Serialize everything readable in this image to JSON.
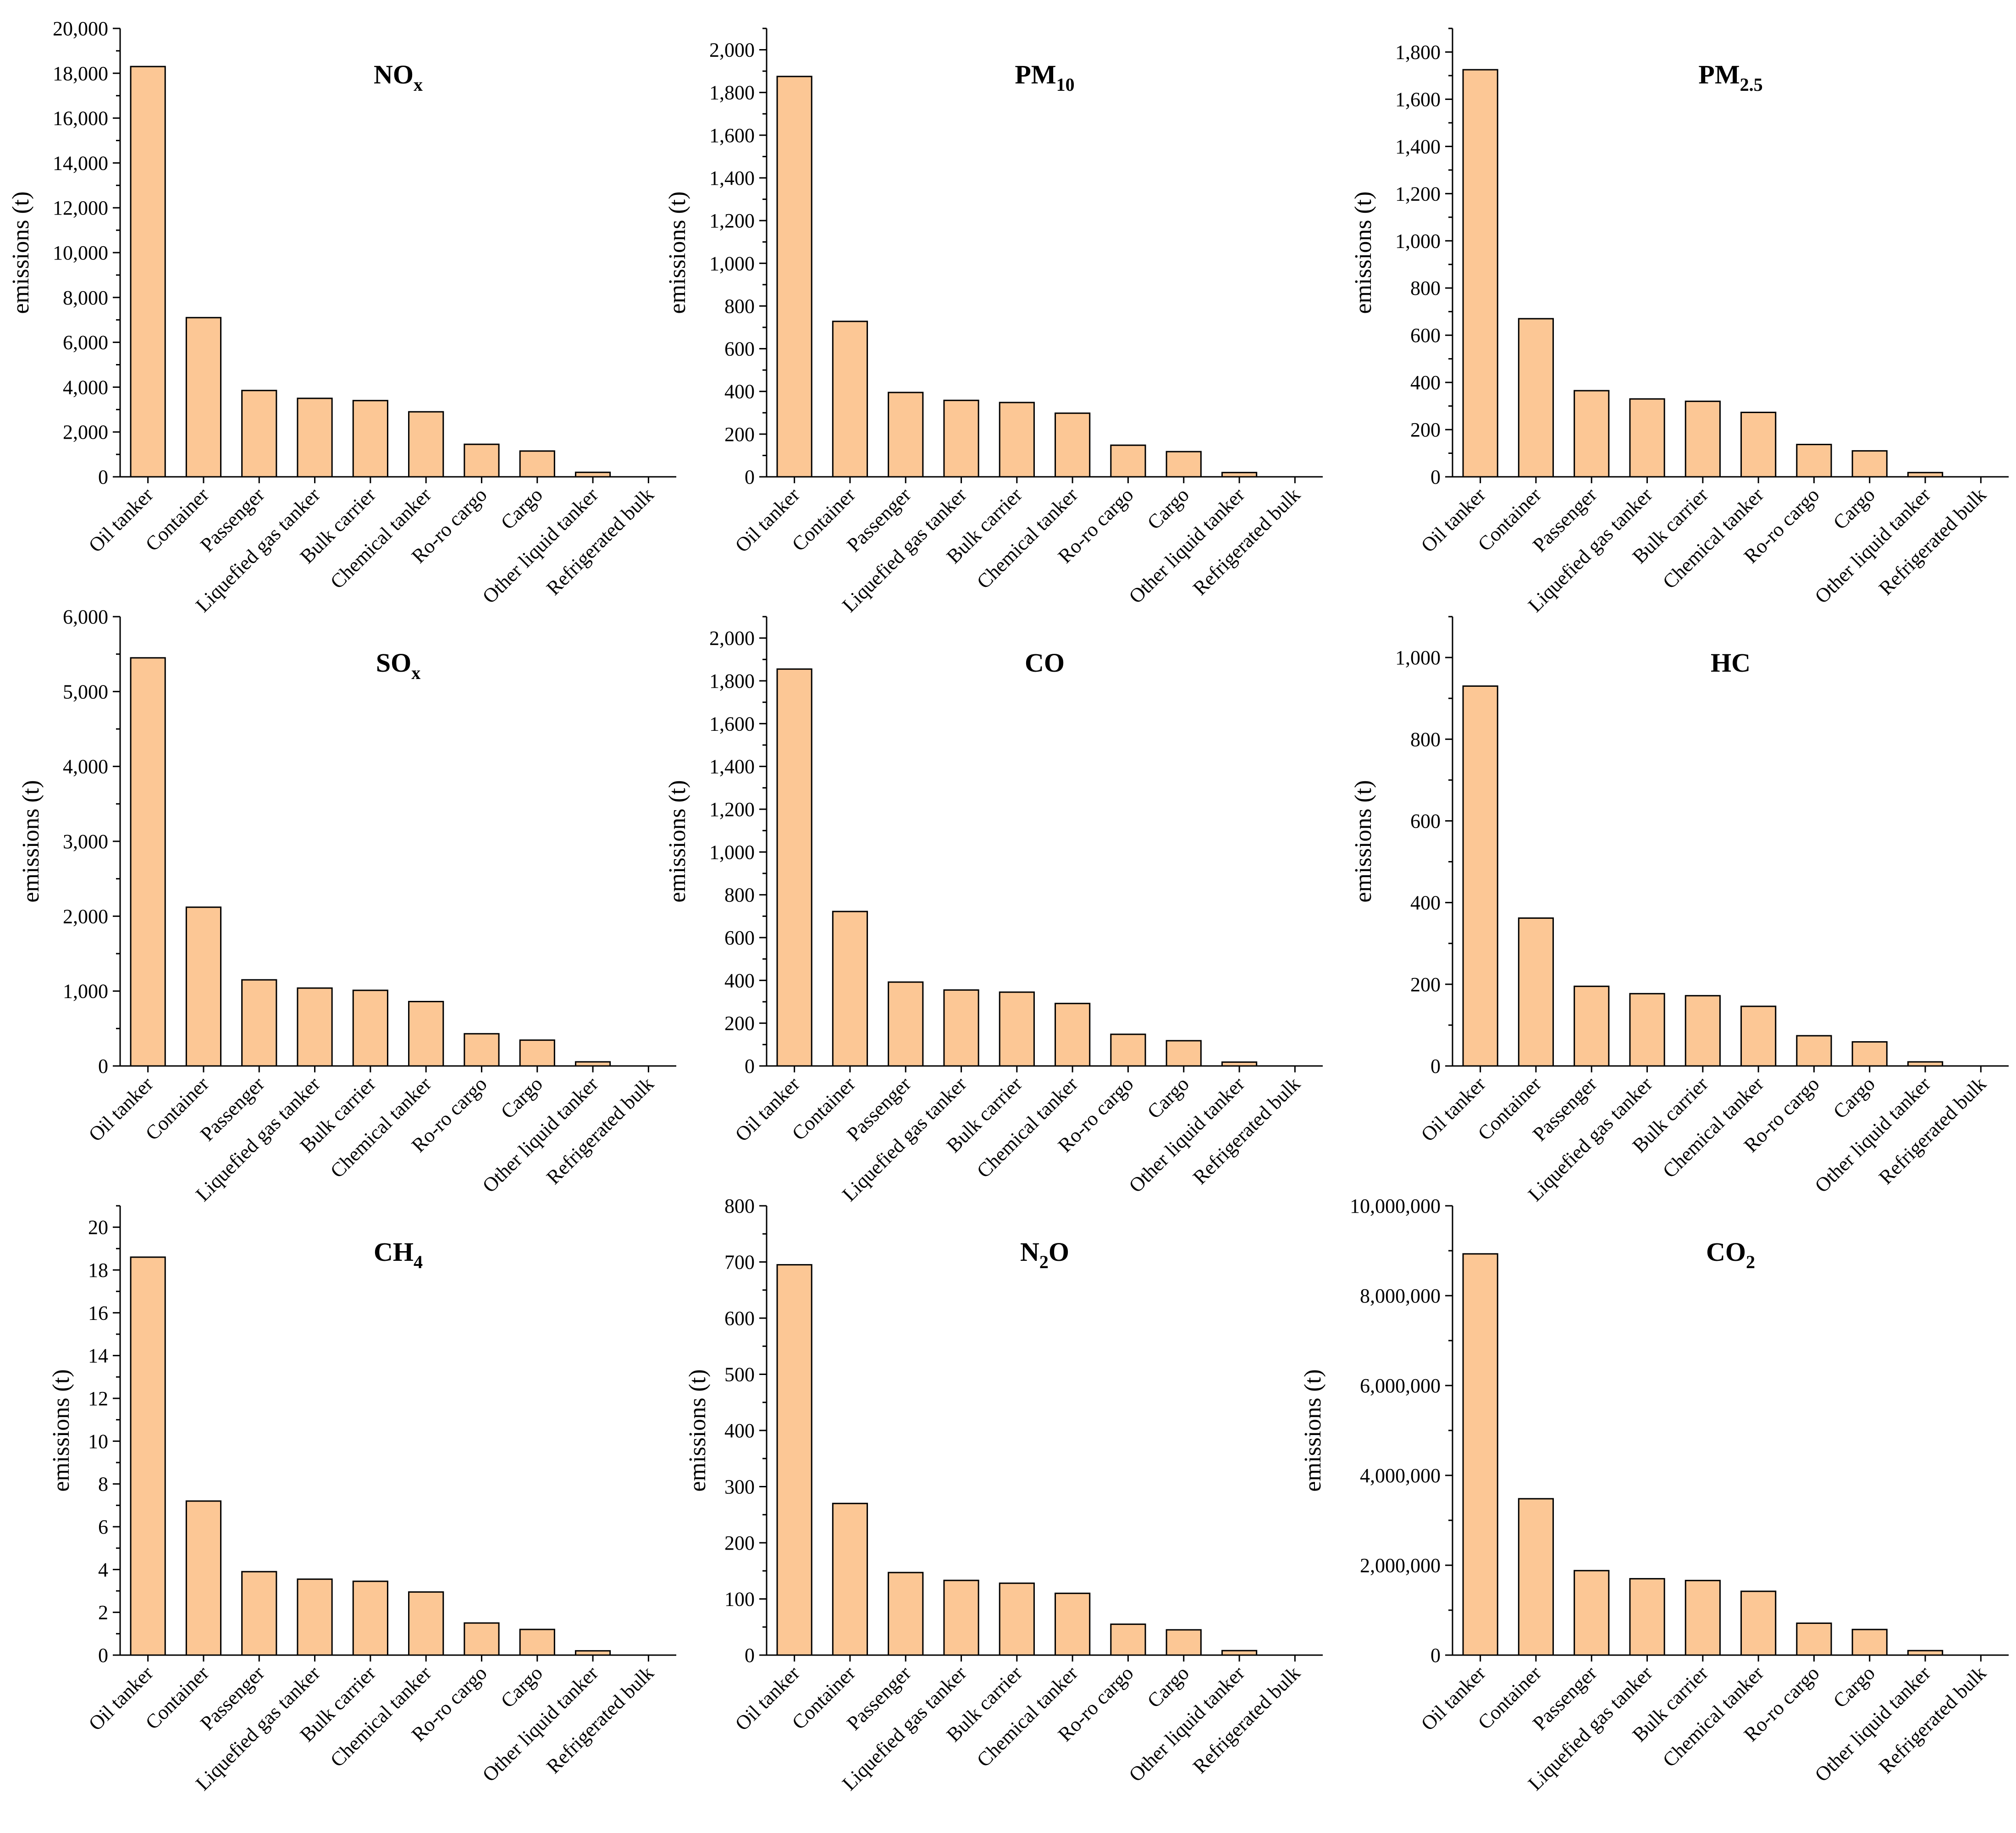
{
  "chart_data": [
    {
      "type": "bar",
      "title": "NOx",
      "title_main": "NO",
      "title_sub": "x",
      "ylabel": "emissions (t)",
      "ylim": [
        0,
        20000
      ],
      "ytick_step": 2000,
      "ytick_labels": [
        "0",
        "2,000",
        "4,000",
        "6,000",
        "8,000",
        "10,000",
        "12,000",
        "14,000",
        "16,000",
        "18,000",
        "20,000"
      ],
      "categories": [
        "Oil tanker",
        "Container",
        "Passenger",
        "Liquefied gas tanker",
        "Bulk carrier",
        "Chemical tanker",
        "Ro-ro cargo",
        "Cargo",
        "Other liquid tanker",
        "Refrigerated bulk"
      ],
      "values": [
        18300,
        7100,
        3850,
        3500,
        3400,
        2900,
        1450,
        1150,
        200,
        0
      ]
    },
    {
      "type": "bar",
      "title": "PM10",
      "title_main": "PM",
      "title_sub": "10",
      "ylabel": "emissions (t)",
      "ylim": [
        0,
        2100
      ],
      "ytick_step": 200,
      "ytick_labels": [
        "0",
        "200",
        "400",
        "600",
        "800",
        "1,000",
        "1,200",
        "1,400",
        "1,600",
        "1,800",
        "2,000"
      ],
      "categories": [
        "Oil tanker",
        "Container",
        "Passenger",
        "Liquefied gas tanker",
        "Bulk carrier",
        "Chemical tanker",
        "Ro-ro cargo",
        "Cargo",
        "Other liquid tanker",
        "Refrigerated bulk"
      ],
      "values": [
        1875,
        728,
        395,
        358,
        348,
        298,
        148,
        118,
        20,
        0
      ]
    },
    {
      "type": "bar",
      "title": "PM2.5",
      "title_main": "PM",
      "title_sub": "2.5",
      "ylabel": "emissions (t)",
      "ylim": [
        0,
        1900
      ],
      "ytick_step": 200,
      "ytick_labels": [
        "0",
        "200",
        "400",
        "600",
        "800",
        "1,000",
        "1,200",
        "1,400",
        "1,600",
        "1,800"
      ],
      "categories": [
        "Oil tanker",
        "Container",
        "Passenger",
        "Liquefied gas tanker",
        "Bulk carrier",
        "Chemical tanker",
        "Ro-ro cargo",
        "Cargo",
        "Other liquid tanker",
        "Refrigerated bulk"
      ],
      "values": [
        1725,
        670,
        365,
        330,
        320,
        273,
        137,
        110,
        18,
        0
      ]
    },
    {
      "type": "bar",
      "title": "SOx",
      "title_main": "SO",
      "title_sub": "x",
      "ylabel": "emissions (t)",
      "ylim": [
        0,
        6000
      ],
      "ytick_step": 1000,
      "ytick_labels": [
        "0",
        "1,000",
        "2,000",
        "3,000",
        "4,000",
        "5,000",
        "6,000"
      ],
      "categories": [
        "Oil tanker",
        "Container",
        "Passenger",
        "Liquefied gas tanker",
        "Bulk carrier",
        "Chemical tanker",
        "Ro-ro cargo",
        "Cargo",
        "Other liquid tanker",
        "Refrigerated bulk"
      ],
      "values": [
        5450,
        2120,
        1150,
        1040,
        1010,
        860,
        430,
        345,
        55,
        0
      ]
    },
    {
      "type": "bar",
      "title": "CO",
      "title_main": "CO",
      "title_sub": "",
      "ylabel": "emissions (t)",
      "ylim": [
        0,
        2100
      ],
      "ytick_step": 200,
      "ytick_labels": [
        "0",
        "200",
        "400",
        "600",
        "800",
        "1,000",
        "1,200",
        "1,400",
        "1,600",
        "1,800",
        "2,000"
      ],
      "categories": [
        "Oil tanker",
        "Container",
        "Passenger",
        "Liquefied gas tanker",
        "Bulk carrier",
        "Chemical tanker",
        "Ro-ro cargo",
        "Cargo",
        "Other liquid tanker",
        "Refrigerated bulk"
      ],
      "values": [
        1855,
        722,
        392,
        355,
        345,
        292,
        148,
        118,
        18,
        0
      ]
    },
    {
      "type": "bar",
      "title": "HC",
      "title_main": "HC",
      "title_sub": "",
      "ylabel": "emissions (t)",
      "ylim": [
        0,
        1100
      ],
      "ytick_step": 200,
      "ytick_labels": [
        "0",
        "200",
        "400",
        "600",
        "800",
        "1,000"
      ],
      "categories": [
        "Oil tanker",
        "Container",
        "Passenger",
        "Liquefied gas tanker",
        "Bulk carrier",
        "Chemical tanker",
        "Ro-ro cargo",
        "Cargo",
        "Other liquid tanker",
        "Refrigerated bulk"
      ],
      "values": [
        930,
        362,
        195,
        177,
        172,
        146,
        74,
        59,
        10,
        0
      ]
    },
    {
      "type": "bar",
      "title": "CH4",
      "title_main": "CH",
      "title_sub": "4",
      "ylabel": "emissions (t)",
      "ylim": [
        0,
        21
      ],
      "ytick_step": 2,
      "ytick_labels": [
        "0",
        "2",
        "4",
        "6",
        "8",
        "10",
        "12",
        "14",
        "16",
        "18",
        "20"
      ],
      "categories": [
        "Oil tanker",
        "Container",
        "Passenger",
        "Liquefied gas tanker",
        "Bulk carrier",
        "Chemical tanker",
        "Ro-ro cargo",
        "Cargo",
        "Other liquid tanker",
        "Refrigerated bulk"
      ],
      "values": [
        18.6,
        7.2,
        3.9,
        3.55,
        3.45,
        2.95,
        1.5,
        1.2,
        0.2,
        0
      ]
    },
    {
      "type": "bar",
      "title": "N2O",
      "title_main": "N",
      "title_sub": "2",
      "title_tail": "O",
      "ylabel": "emissions (t)",
      "ylim": [
        0,
        800
      ],
      "ytick_step": 100,
      "ytick_labels": [
        "0",
        "100",
        "200",
        "300",
        "400",
        "500",
        "600",
        "700",
        "800"
      ],
      "categories": [
        "Oil tanker",
        "Container",
        "Passenger",
        "Liquefied gas tanker",
        "Bulk carrier",
        "Chemical tanker",
        "Ro-ro cargo",
        "Cargo",
        "Other liquid tanker",
        "Refrigerated bulk"
      ],
      "values": [
        695,
        270,
        147,
        133,
        128,
        110,
        55,
        45,
        8,
        0
      ]
    },
    {
      "type": "bar",
      "title": "CO2",
      "title_main": "CO",
      "title_sub": "2",
      "ylabel": "emissions (t)",
      "ylim": [
        0,
        10000000
      ],
      "ytick_step": 2000000,
      "ytick_labels": [
        "0",
        "2,000,000",
        "4,000,000",
        "6,000,000",
        "8,000,000",
        "10,000,000"
      ],
      "categories": [
        "Oil tanker",
        "Container",
        "Passenger",
        "Liquefied gas tanker",
        "Bulk carrier",
        "Chemical tanker",
        "Ro-ro cargo",
        "Cargo",
        "Other liquid tanker",
        "Refrigerated bulk"
      ],
      "values": [
        8930000,
        3480000,
        1880000,
        1700000,
        1660000,
        1420000,
        710000,
        570000,
        100000,
        0
      ]
    }
  ]
}
